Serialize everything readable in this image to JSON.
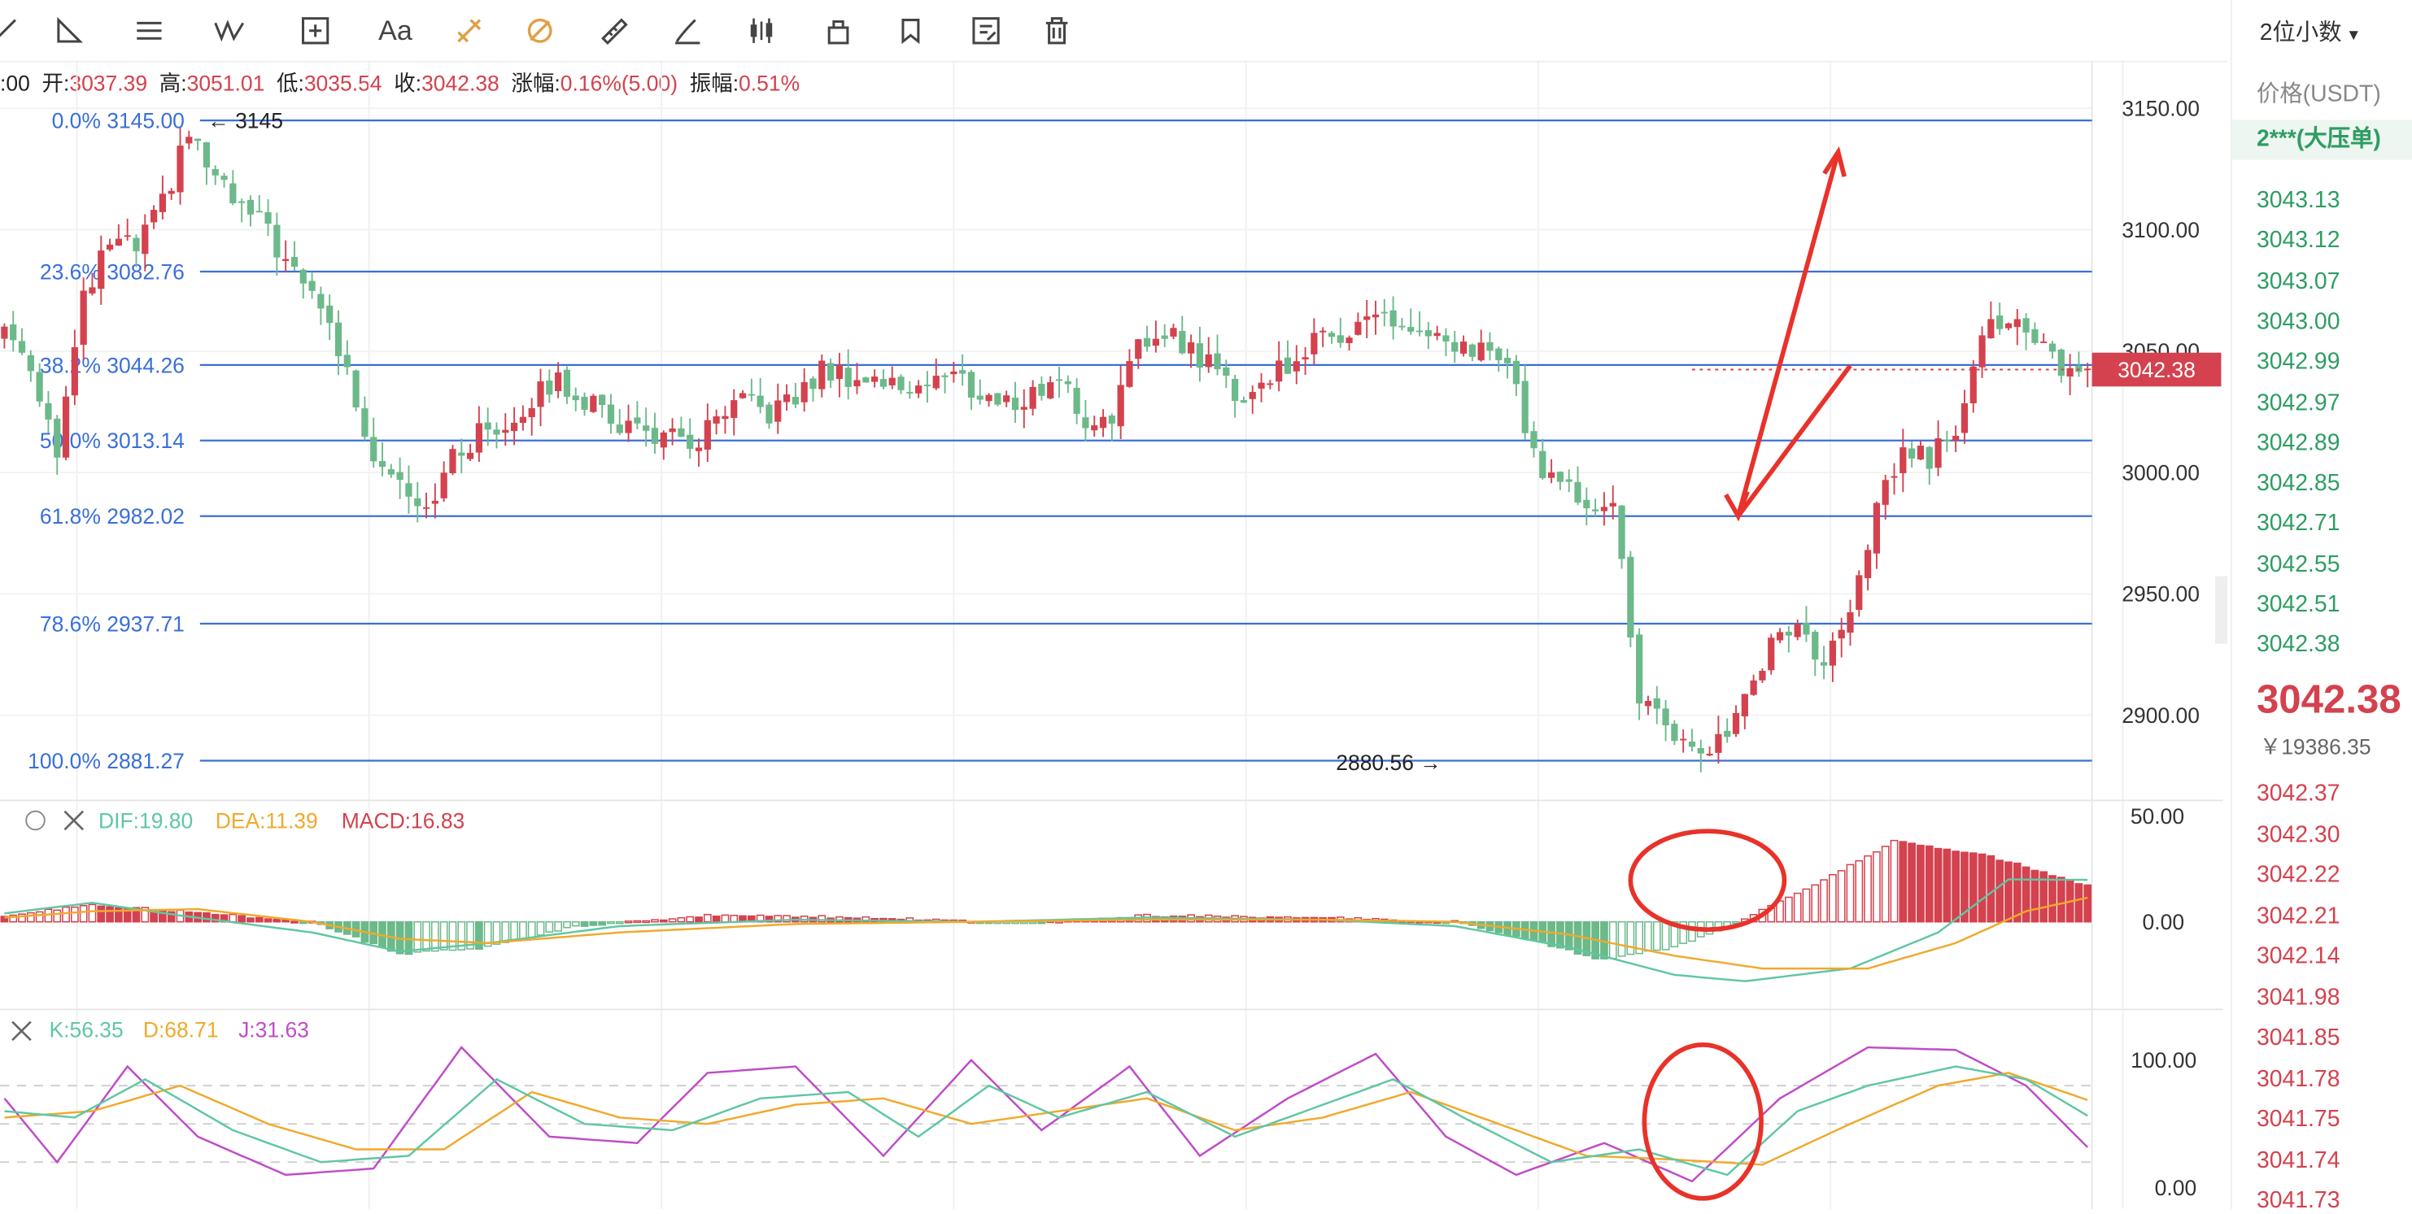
{
  "toolbar": {
    "icons": [
      "line-tool-icon",
      "angle-tool-icon",
      "parallel-lines-icon",
      "elliott-wave-icon",
      "measure-icon",
      "text-icon",
      "fib-retracement-icon",
      "fib-extension-icon",
      "ruler-icon",
      "brush-icon",
      "candle-pattern-icon",
      "lock-icon",
      "layers-icon",
      "edit-icon",
      "delete-icon"
    ],
    "text_label": "Aa"
  },
  "ohlc_bar": {
    "time_fragment": ":00",
    "open_label": "开:",
    "open": "3037.39",
    "high_label": "高:",
    "high": "3051.01",
    "low_label": "低:",
    "low": "3035.54",
    "close_label": "收:",
    "close": "3042.38",
    "change_label": "涨幅:",
    "change": "0.16%(5.00)",
    "amp_label": "振幅:",
    "amp": "0.51%"
  },
  "fib_levels": [
    {
      "label": "0.0% 3145.00",
      "price": 3145.0
    },
    {
      "label": "23.6% 3082.76",
      "price": 3082.76
    },
    {
      "label": "38.2% 3044.26",
      "price": 3044.26
    },
    {
      "label": "50.0% 3013.14",
      "price": 3013.14
    },
    {
      "label": "61.8% 2982.02",
      "price": 2982.02
    },
    {
      "label": "78.6% 2937.71",
      "price": 2937.71
    },
    {
      "label": "100.0% 2881.27",
      "price": 2881.27
    }
  ],
  "markers": {
    "high_marker": "← 3145",
    "low_marker": "2880.56 →"
  },
  "price_axis": {
    "ticks": [
      "3150.00",
      "3100.00",
      "3050.00",
      "3000.00",
      "2950.00",
      "2900.00"
    ],
    "last_price": "3042.38"
  },
  "macd": {
    "dif_label": "DIF:19.80",
    "dea_label": "DEA:11.39",
    "macd_label": "MACD:16.83",
    "ticks": [
      "50.00",
      "0.00"
    ]
  },
  "kdj": {
    "k_label": "K:56.35",
    "d_label": "D:68.71",
    "j_label": "J:31.63",
    "ticks": [
      "100.00",
      "0.00"
    ]
  },
  "colors": {
    "up": "#d3424e",
    "down": "#6cb98a",
    "fib": "#3a6fd8",
    "dif": "#5fc7a3",
    "dea": "#f0a92c",
    "j": "#c04bc8",
    "annotation": "#e8322a"
  },
  "orderbook": {
    "precision_select": "2位小数",
    "header": "价格(USDT)",
    "big_order": "2***(大压单)",
    "asks": [
      "3043.13",
      "3043.12",
      "3043.07",
      "3043.00",
      "3042.99",
      "3042.97",
      "3042.89",
      "3042.85",
      "3042.71",
      "3042.55",
      "3042.51",
      "3042.38"
    ],
    "last": "3042.38",
    "cny": "￥19386.35",
    "bids": [
      "3042.37",
      "3042.30",
      "3042.22",
      "3042.21",
      "3042.14",
      "3041.98",
      "3041.85",
      "3041.78",
      "3041.75",
      "3041.74",
      "3041.73"
    ]
  },
  "chart_data": {
    "type": "candlestick",
    "title": "",
    "ylim": [
      2860,
      3165
    ],
    "price_range_reference": {
      "high": 3145,
      "low": 2880.56
    },
    "waypoints_close": [
      [
        0,
        3060
      ],
      [
        3,
        3045
      ],
      [
        6,
        3010
      ],
      [
        9,
        3070
      ],
      [
        12,
        3095
      ],
      [
        15,
        3092
      ],
      [
        18,
        3110
      ],
      [
        21,
        3140
      ],
      [
        24,
        3120
      ],
      [
        27,
        3108
      ],
      [
        30,
        3100
      ],
      [
        33,
        3080
      ],
      [
        36,
        3070
      ],
      [
        39,
        3040
      ],
      [
        42,
        3008
      ],
      [
        45,
        2998
      ],
      [
        48,
        2986
      ],
      [
        51,
        3005
      ],
      [
        54,
        3016
      ],
      [
        57,
        3020
      ],
      [
        60,
        3030
      ],
      [
        63,
        3038
      ],
      [
        66,
        3030
      ],
      [
        69,
        3022
      ],
      [
        72,
        3018
      ],
      [
        75,
        3015
      ],
      [
        78,
        3010
      ],
      [
        81,
        3020
      ],
      [
        84,
        3028
      ],
      [
        87,
        3025
      ],
      [
        90,
        3030
      ],
      [
        93,
        3042
      ],
      [
        96,
        3040
      ],
      [
        99,
        3038
      ],
      [
        102,
        3035
      ],
      [
        105,
        3038
      ],
      [
        108,
        3040
      ],
      [
        111,
        3032
      ],
      [
        114,
        3028
      ],
      [
        117,
        3032
      ],
      [
        120,
        3040
      ],
      [
        123,
        3020
      ],
      [
        126,
        3025
      ],
      [
        129,
        3050
      ],
      [
        132,
        3060
      ],
      [
        135,
        3050
      ],
      [
        138,
        3042
      ],
      [
        141,
        3030
      ],
      [
        144,
        3040
      ],
      [
        147,
        3048
      ],
      [
        150,
        3055
      ],
      [
        153,
        3060
      ],
      [
        156,
        3065
      ],
      [
        159,
        3060
      ],
      [
        162,
        3055
      ],
      [
        165,
        3048
      ],
      [
        168,
        3052
      ],
      [
        171,
        3045
      ],
      [
        174,
        3006
      ],
      [
        177,
        2996
      ],
      [
        180,
        2988
      ],
      [
        183,
        2990
      ],
      [
        186,
        2905
      ],
      [
        189,
        2898
      ],
      [
        192,
        2882
      ],
      [
        195,
        2890
      ],
      [
        198,
        2905
      ],
      [
        201,
        2930
      ],
      [
        204,
        2938
      ],
      [
        207,
        2920
      ],
      [
        210,
        2940
      ],
      [
        213,
        2985
      ],
      [
        216,
        3010
      ],
      [
        219,
        3005
      ],
      [
        222,
        3020
      ],
      [
        225,
        3060
      ],
      [
        228,
        3064
      ],
      [
        231,
        3052
      ],
      [
        234,
        3044
      ],
      [
        237,
        3042
      ]
    ],
    "macd_hist_waypoints": [
      [
        0,
        3
      ],
      [
        10,
        8
      ],
      [
        20,
        5
      ],
      [
        35,
        0
      ],
      [
        45,
        -15
      ],
      [
        55,
        -12
      ],
      [
        65,
        -2
      ],
      [
        80,
        3
      ],
      [
        100,
        2
      ],
      [
        115,
        -1
      ],
      [
        130,
        3
      ],
      [
        150,
        2
      ],
      [
        165,
        0
      ],
      [
        175,
        -10
      ],
      [
        182,
        -18
      ],
      [
        190,
        -12
      ],
      [
        196,
        -2
      ],
      [
        205,
        15
      ],
      [
        215,
        38
      ],
      [
        225,
        32
      ],
      [
        230,
        26
      ],
      [
        237,
        17
      ]
    ],
    "dif_waypoints": [
      [
        0,
        4
      ],
      [
        10,
        9
      ],
      [
        20,
        3
      ],
      [
        35,
        -5
      ],
      [
        45,
        -14
      ],
      [
        55,
        -10
      ],
      [
        70,
        -2
      ],
      [
        90,
        1
      ],
      [
        110,
        0
      ],
      [
        130,
        2
      ],
      [
        150,
        1
      ],
      [
        165,
        -2
      ],
      [
        178,
        -12
      ],
      [
        190,
        -25
      ],
      [
        198,
        -28
      ],
      [
        210,
        -22
      ],
      [
        220,
        -5
      ],
      [
        228,
        20
      ],
      [
        237,
        19.8
      ]
    ],
    "dea_waypoints": [
      [
        0,
        2
      ],
      [
        10,
        5
      ],
      [
        22,
        6
      ],
      [
        35,
        0
      ],
      [
        45,
        -8
      ],
      [
        55,
        -10
      ],
      [
        70,
        -5
      ],
      [
        90,
        -1
      ],
      [
        110,
        0
      ],
      [
        130,
        1
      ],
      [
        150,
        1
      ],
      [
        165,
        0
      ],
      [
        178,
        -6
      ],
      [
        190,
        -16
      ],
      [
        200,
        -22
      ],
      [
        212,
        -22
      ],
      [
        222,
        -10
      ],
      [
        230,
        5
      ],
      [
        237,
        11.39
      ]
    ],
    "kdj_waypoints": {
      "k": [
        [
          0,
          60
        ],
        [
          8,
          55
        ],
        [
          16,
          85
        ],
        [
          26,
          45
        ],
        [
          36,
          20
        ],
        [
          46,
          25
        ],
        [
          56,
          85
        ],
        [
          66,
          50
        ],
        [
          76,
          45
        ],
        [
          86,
          70
        ],
        [
          96,
          75
        ],
        [
          104,
          40
        ],
        [
          112,
          80
        ],
        [
          120,
          55
        ],
        [
          130,
          75
        ],
        [
          140,
          40
        ],
        [
          148,
          60
        ],
        [
          158,
          85
        ],
        [
          166,
          55
        ],
        [
          176,
          20
        ],
        [
          186,
          30
        ],
        [
          196,
          10
        ],
        [
          204,
          60
        ],
        [
          212,
          80
        ],
        [
          222,
          95
        ],
        [
          230,
          85
        ],
        [
          237,
          56.35
        ]
      ],
      "d": [
        [
          0,
          55
        ],
        [
          10,
          60
        ],
        [
          20,
          80
        ],
        [
          30,
          50
        ],
        [
          40,
          30
        ],
        [
          50,
          30
        ],
        [
          60,
          75
        ],
        [
          70,
          55
        ],
        [
          80,
          50
        ],
        [
          90,
          65
        ],
        [
          100,
          70
        ],
        [
          110,
          50
        ],
        [
          120,
          60
        ],
        [
          130,
          70
        ],
        [
          140,
          45
        ],
        [
          150,
          55
        ],
        [
          160,
          75
        ],
        [
          170,
          50
        ],
        [
          180,
          25
        ],
        [
          190,
          22
        ],
        [
          200,
          18
        ],
        [
          210,
          50
        ],
        [
          220,
          80
        ],
        [
          228,
          90
        ],
        [
          237,
          68.71
        ]
      ],
      "j": [
        [
          0,
          70
        ],
        [
          6,
          20
        ],
        [
          14,
          95
        ],
        [
          22,
          40
        ],
        [
          32,
          10
        ],
        [
          42,
          15
        ],
        [
          52,
          110
        ],
        [
          62,
          40
        ],
        [
          72,
          35
        ],
        [
          80,
          90
        ],
        [
          90,
          95
        ],
        [
          100,
          25
        ],
        [
          110,
          100
        ],
        [
          118,
          45
        ],
        [
          128,
          95
        ],
        [
          136,
          25
        ],
        [
          146,
          70
        ],
        [
          156,
          105
        ],
        [
          164,
          40
        ],
        [
          172,
          10
        ],
        [
          182,
          35
        ],
        [
          192,
          5
        ],
        [
          202,
          70
        ],
        [
          212,
          110
        ],
        [
          222,
          108
        ],
        [
          230,
          80
        ],
        [
          237,
          31.63
        ]
      ]
    }
  }
}
